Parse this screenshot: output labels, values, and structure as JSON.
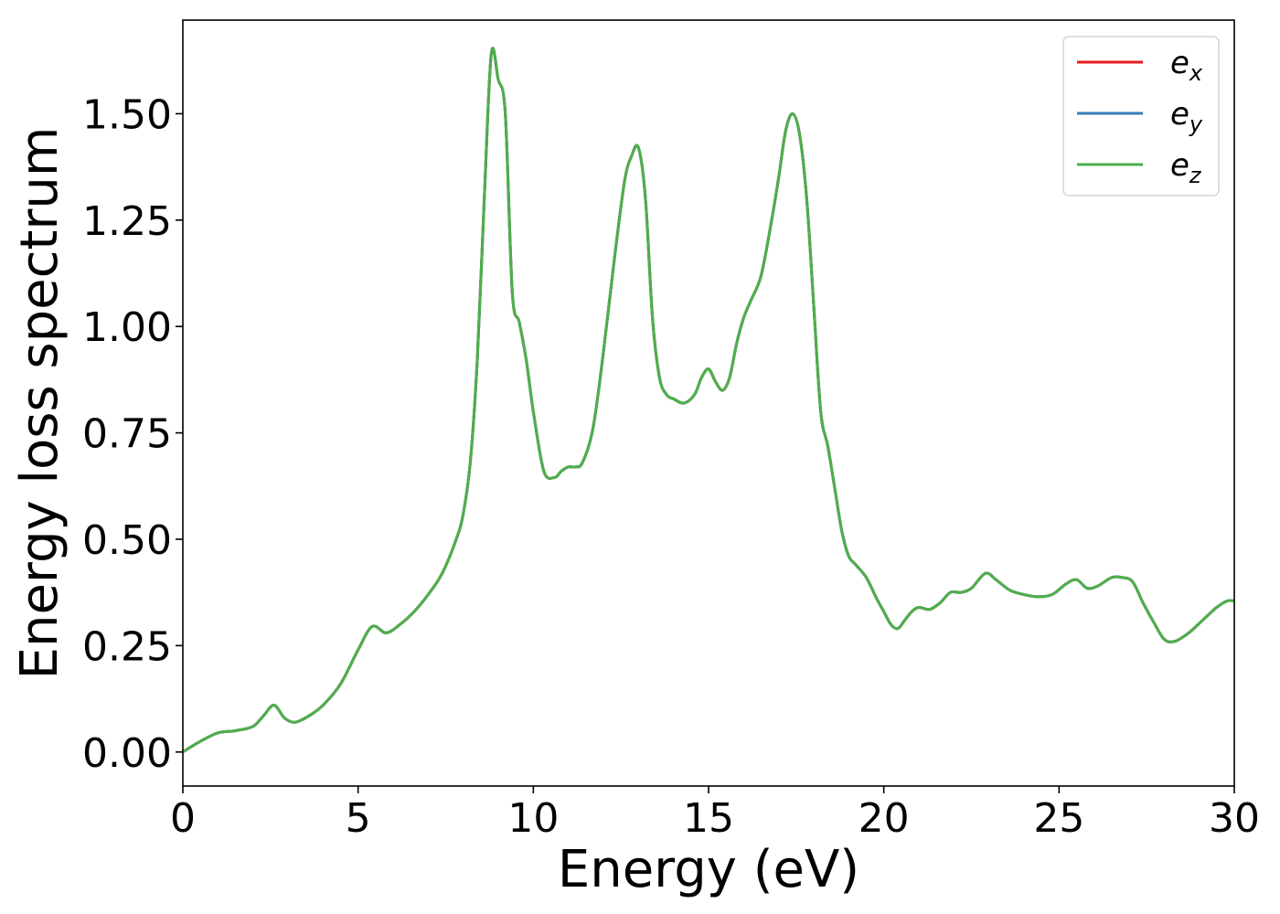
{
  "chart_data": {
    "type": "line",
    "xlabel": "Energy (eV)",
    "ylabel": "Energy loss spectrum",
    "xlim": [
      0,
      30
    ],
    "ylim": [
      -0.08,
      1.72
    ],
    "xticks": [
      0,
      5,
      10,
      15,
      20,
      25,
      30
    ],
    "xtick_labels": [
      "0",
      "5",
      "10",
      "15",
      "20",
      "25",
      "30"
    ],
    "yticks": [
      0.0,
      0.25,
      0.5,
      0.75,
      1.0,
      1.25,
      1.5
    ],
    "ytick_labels": [
      "0.00",
      "0.25",
      "0.50",
      "0.75",
      "1.00",
      "1.25",
      "1.50"
    ],
    "grid": false,
    "legend_position": "top-right",
    "x": [
      0,
      0.5,
      1.0,
      1.5,
      2.0,
      2.3,
      2.6,
      2.9,
      3.2,
      3.6,
      4.0,
      4.5,
      5.0,
      5.4,
      5.8,
      6.2,
      6.6,
      7.0,
      7.4,
      7.8,
      8.0,
      8.2,
      8.4,
      8.6,
      8.8,
      9.0,
      9.2,
      9.4,
      9.6,
      9.8,
      10.0,
      10.3,
      10.6,
      10.8,
      11.0,
      11.2,
      11.4,
      11.7,
      12.0,
      12.3,
      12.6,
      12.8,
      13.0,
      13.2,
      13.4,
      13.6,
      13.8,
      14.0,
      14.3,
      14.6,
      14.8,
      15.0,
      15.2,
      15.4,
      15.6,
      15.8,
      16.0,
      16.2,
      16.5,
      16.8,
      17.0,
      17.2,
      17.4,
      17.6,
      17.8,
      18.0,
      18.2,
      18.4,
      18.6,
      18.8,
      19.0,
      19.2,
      19.5,
      19.8,
      20.0,
      20.2,
      20.4,
      20.6,
      20.8,
      21.0,
      21.3,
      21.6,
      21.9,
      22.2,
      22.5,
      22.9,
      23.2,
      23.6,
      24.0,
      24.4,
      24.8,
      25.2,
      25.5,
      25.8,
      26.1,
      26.5,
      26.8,
      27.1,
      27.4,
      27.7,
      28.0,
      28.3,
      28.7,
      29.1,
      29.5,
      29.8,
      30.0
    ],
    "series": [
      {
        "name": "e_x",
        "color": "#e41a1c"
      },
      {
        "name": "e_y",
        "color": "#377eb8"
      },
      {
        "name": "e_z",
        "color": "#4daf4a"
      }
    ],
    "y": [
      0.0,
      0.025,
      0.045,
      0.05,
      0.06,
      0.085,
      0.11,
      0.08,
      0.07,
      0.085,
      0.11,
      0.16,
      0.24,
      0.295,
      0.28,
      0.3,
      0.33,
      0.37,
      0.42,
      0.5,
      0.56,
      0.68,
      0.92,
      1.3,
      1.64,
      1.58,
      1.5,
      1.08,
      1.01,
      0.92,
      0.8,
      0.66,
      0.645,
      0.66,
      0.67,
      0.67,
      0.68,
      0.76,
      0.94,
      1.15,
      1.34,
      1.4,
      1.42,
      1.3,
      1.02,
      0.88,
      0.84,
      0.83,
      0.82,
      0.84,
      0.88,
      0.9,
      0.87,
      0.85,
      0.88,
      0.96,
      1.02,
      1.06,
      1.12,
      1.25,
      1.35,
      1.46,
      1.5,
      1.45,
      1.3,
      1.05,
      0.8,
      0.72,
      0.62,
      0.52,
      0.46,
      0.44,
      0.41,
      0.36,
      0.33,
      0.3,
      0.29,
      0.31,
      0.33,
      0.34,
      0.335,
      0.35,
      0.375,
      0.375,
      0.385,
      0.42,
      0.405,
      0.38,
      0.37,
      0.365,
      0.37,
      0.395,
      0.405,
      0.385,
      0.39,
      0.41,
      0.41,
      0.4,
      0.35,
      0.305,
      0.265,
      0.26,
      0.28,
      0.31,
      0.34,
      0.355,
      0.355
    ]
  }
}
